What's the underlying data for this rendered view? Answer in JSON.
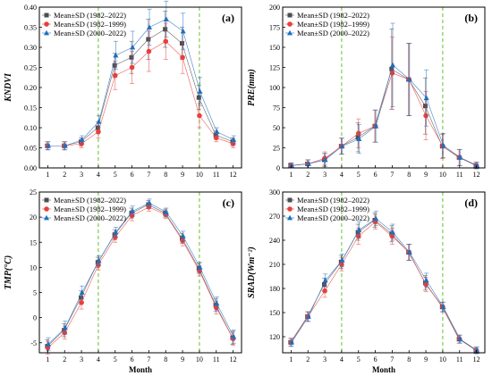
{
  "colors": {
    "s1982_2022": "#4d4d4d",
    "s1982_1999": "#e8403c",
    "s2000_2022": "#1f6fbf",
    "guide": "#6abf2e"
  },
  "chart_data": [
    {
      "type": "line",
      "panel_label": "(a)",
      "ylabel": "KNDVI",
      "xlabel": "",
      "x": [
        1,
        2,
        3,
        4,
        5,
        6,
        7,
        8,
        9,
        10,
        11,
        12
      ],
      "xlim": [
        0.5,
        12.5
      ],
      "ylim": [
        0,
        0.4
      ],
      "yticks": [
        0.0,
        0.05,
        0.1,
        0.15,
        0.2,
        0.25,
        0.3,
        0.35,
        0.4
      ],
      "ytick_labels": [
        "0.00",
        "0.05",
        "0.10",
        "0.15",
        "0.20",
        "0.25",
        "0.30",
        "0.35",
        "0.40"
      ],
      "guide_lines": [
        4,
        10
      ],
      "legend": "top-left",
      "series": [
        {
          "name": "Mean±SD (1982–2022)",
          "marker": "square",
          "values": [
            0.055,
            0.055,
            0.065,
            0.1,
            0.255,
            0.275,
            0.32,
            0.345,
            0.31,
            0.175,
            0.082,
            0.065
          ],
          "sd": [
            0.01,
            0.01,
            0.01,
            0.015,
            0.03,
            0.04,
            0.05,
            0.045,
            0.04,
            0.03,
            0.01,
            0.01
          ]
        },
        {
          "name": "Mean±SD (1982–1999)",
          "marker": "circle",
          "values": [
            0.055,
            0.055,
            0.06,
            0.09,
            0.23,
            0.25,
            0.29,
            0.315,
            0.275,
            0.13,
            0.075,
            0.06
          ],
          "sd": [
            0.01,
            0.01,
            0.01,
            0.015,
            0.035,
            0.04,
            0.05,
            0.045,
            0.04,
            0.03,
            0.01,
            0.01
          ]
        },
        {
          "name": "Mean±SD (2000–2022)",
          "marker": "triangle",
          "values": [
            0.055,
            0.055,
            0.07,
            0.115,
            0.28,
            0.3,
            0.35,
            0.37,
            0.34,
            0.19,
            0.09,
            0.07
          ],
          "sd": [
            0.01,
            0.01,
            0.01,
            0.015,
            0.035,
            0.04,
            0.045,
            0.045,
            0.045,
            0.035,
            0.01,
            0.01
          ]
        }
      ]
    },
    {
      "type": "line",
      "panel_label": "(b)",
      "ylabel": "PRE(mm)",
      "xlabel": "",
      "x": [
        1,
        2,
        3,
        4,
        5,
        6,
        7,
        8,
        9,
        10,
        11,
        12
      ],
      "xlim": [
        0.5,
        12.5
      ],
      "ylim": [
        0,
        200
      ],
      "yticks": [
        0,
        25,
        50,
        75,
        100,
        125,
        150,
        175,
        200
      ],
      "ytick_labels": [
        "0",
        "25",
        "50",
        "75",
        "100",
        "125",
        "150",
        "175",
        "200"
      ],
      "guide_lines": [
        4,
        10
      ],
      "legend": "top-left",
      "series": [
        {
          "name": "Mean±SD (1982–2022)",
          "marker": "square",
          "values": [
            3,
            5,
            10,
            27,
            38,
            52,
            123,
            110,
            77,
            27,
            13,
            3
          ],
          "sd": [
            3,
            5,
            8,
            10,
            18,
            20,
            50,
            45,
            35,
            15,
            10,
            4
          ]
        },
        {
          "name": "Mean±SD (1982–1999)",
          "marker": "circle",
          "values": [
            3,
            5,
            12,
            27,
            43,
            52,
            118,
            110,
            65,
            27,
            13,
            3
          ],
          "sd": [
            3,
            5,
            8,
            10,
            18,
            20,
            45,
            45,
            30,
            15,
            10,
            4
          ]
        },
        {
          "name": "Mean±SD (2000–2022)",
          "marker": "triangle",
          "values": [
            3,
            5,
            10,
            27,
            36,
            52,
            128,
            110,
            87,
            28,
            13,
            3
          ],
          "sd": [
            3,
            5,
            8,
            10,
            18,
            20,
            52,
            45,
            35,
            15,
            10,
            4
          ]
        }
      ]
    },
    {
      "type": "line",
      "panel_label": "(c)",
      "ylabel": "TMP(°C)",
      "xlabel": "Month",
      "x": [
        1,
        2,
        3,
        4,
        5,
        6,
        7,
        8,
        9,
        10,
        11,
        12
      ],
      "xlim": [
        0.5,
        12.5
      ],
      "ylim": [
        -7,
        25
      ],
      "yticks": [
        -5,
        0,
        5,
        10,
        15,
        20,
        25
      ],
      "ytick_labels": [
        "-5",
        "0",
        "5",
        "10",
        "15",
        "20",
        "25"
      ],
      "guide_lines": [
        4,
        10
      ],
      "legend": "top-left",
      "series": [
        {
          "name": "Mean±SD (1982–2022)",
          "marker": "square",
          "values": [
            -5.7,
            -2.5,
            4,
            11,
            16.5,
            20.8,
            22.5,
            20.8,
            15.8,
            9.8,
            2.5,
            -4
          ],
          "sd": [
            1.3,
            1.3,
            1.3,
            1,
            1,
            1,
            0.8,
            0.8,
            1,
            1,
            1.3,
            1.3
          ]
        },
        {
          "name": "Mean±SD (1982–1999)",
          "marker": "circle",
          "values": [
            -6,
            -3,
            3,
            10.5,
            16,
            20.3,
            22,
            20.5,
            15.3,
            9.3,
            2,
            -4.2
          ],
          "sd": [
            1.3,
            1.3,
            1.3,
            1,
            1,
            1,
            0.8,
            0.8,
            1,
            1,
            1.3,
            1.3
          ]
        },
        {
          "name": "Mean±SD (2000–2022)",
          "marker": "triangle",
          "values": [
            -5.3,
            -2,
            5,
            11.3,
            17,
            21.2,
            22.8,
            21,
            16.2,
            10,
            2.8,
            -3.8
          ],
          "sd": [
            1.3,
            1.3,
            1.3,
            1,
            1,
            1,
            0.8,
            0.8,
            1,
            1,
            1.3,
            1.3
          ]
        }
      ]
    },
    {
      "type": "line",
      "panel_label": "(d)",
      "ylabel": "SRAD(Wm⁻²)",
      "xlabel": "Month",
      "x": [
        1,
        2,
        3,
        4,
        5,
        6,
        7,
        8,
        9,
        10,
        11,
        12
      ],
      "xlim": [
        0.5,
        12.5
      ],
      "ylim": [
        100,
        300
      ],
      "yticks": [
        120,
        150,
        180,
        210,
        240,
        270,
        300
      ],
      "ytick_labels": [
        "120",
        "150",
        "180",
        "210",
        "240",
        "270",
        "300"
      ],
      "guide_lines": [
        4,
        10
      ],
      "legend": "top-left",
      "series": [
        {
          "name": "Mean±SD (1982–2022)",
          "marker": "square",
          "values": [
            113,
            145,
            185,
            213,
            250,
            265,
            248,
            225,
            187,
            157,
            117,
            103
          ],
          "sd": [
            5,
            6,
            8,
            8,
            10,
            9,
            10,
            10,
            9,
            6,
            5,
            4
          ]
        },
        {
          "name": "Mean±SD (1982–1999)",
          "marker": "circle",
          "values": [
            113,
            145,
            177,
            210,
            245,
            263,
            245,
            225,
            185,
            157,
            117,
            103
          ],
          "sd": [
            5,
            6,
            8,
            8,
            10,
            9,
            10,
            10,
            9,
            6,
            5,
            4
          ]
        },
        {
          "name": "Mean±SD (2000–2022)",
          "marker": "triangle",
          "values": [
            113,
            145,
            190,
            215,
            253,
            267,
            250,
            225,
            190,
            157,
            117,
            103
          ],
          "sd": [
            5,
            6,
            8,
            8,
            10,
            9,
            10,
            10,
            9,
            6,
            5,
            4
          ]
        }
      ]
    }
  ]
}
